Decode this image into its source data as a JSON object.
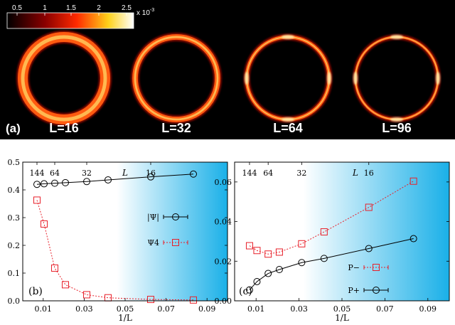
{
  "panel_a": {
    "label": "(a)",
    "colorbar": {
      "ticks": [
        "0.5",
        "1",
        "1.5",
        "2",
        "2.5"
      ],
      "scale": "x 10",
      "exponent": "-3"
    },
    "rings": [
      {
        "label": "L=16",
        "thickness": 1.0
      },
      {
        "label": "L=32",
        "thickness": 0.55
      },
      {
        "label": "L=64",
        "thickness": 0.35
      },
      {
        "label": "L=96",
        "thickness": 0.25
      }
    ]
  },
  "chart_data": [
    {
      "type": "line",
      "panel_label": "(b)",
      "xlabel": "1/L",
      "top_axis_label": "L",
      "top_ticks": [
        "144",
        "64",
        "32",
        "16"
      ],
      "top_tick_values": [
        0.006944,
        0.015625,
        0.03125,
        0.0625
      ],
      "xlim": [
        0,
        0.1
      ],
      "ylim": [
        0,
        0.5
      ],
      "xticks": [
        "0.01",
        "0.03",
        "0.05",
        "0.07",
        "0.09"
      ],
      "yticks": [
        "0.0",
        "0.1",
        "0.2",
        "0.3",
        "0.4",
        "0.5"
      ],
      "x": [
        0.006944,
        0.010417,
        0.015625,
        0.020833,
        0.03125,
        0.041667,
        0.0625,
        0.083333
      ],
      "series": [
        {
          "name": "|Ψ|",
          "marker": "circle",
          "color": "#000000",
          "values": [
            0.42,
            0.422,
            0.424,
            0.426,
            0.43,
            0.436,
            0.447,
            0.457
          ]
        },
        {
          "name": "Ψ4",
          "marker": "square",
          "color": "#e8202a",
          "values": [
            0.363,
            0.277,
            0.118,
            0.058,
            0.022,
            0.011,
            0.005,
            0.003
          ]
        }
      ],
      "legend": "right"
    },
    {
      "type": "line",
      "panel_label": "(c)",
      "xlabel": "1/L",
      "top_axis_label": "L",
      "top_ticks": [
        "144",
        "64",
        "32",
        "16"
      ],
      "top_tick_values": [
        0.006944,
        0.015625,
        0.03125,
        0.0625
      ],
      "xlim": [
        0,
        0.1
      ],
      "ylim": [
        0,
        0.07
      ],
      "xticks": [
        "0.01",
        "0.03",
        "0.05",
        "0.07",
        "0.09"
      ],
      "yticks": [
        "0.00",
        "0.02",
        "0.04",
        "0.06"
      ],
      "x": [
        0.006944,
        0.010417,
        0.015625,
        0.020833,
        0.03125,
        0.041667,
        0.0625,
        0.083333
      ],
      "series": [
        {
          "name": "P−",
          "marker": "square",
          "color": "#e8202a",
          "values": [
            0.0278,
            0.0254,
            0.0236,
            0.0246,
            0.0288,
            0.0348,
            0.0472,
            0.0604
          ]
        },
        {
          "name": "P+",
          "marker": "circle",
          "color": "#000000",
          "values": [
            0.0055,
            0.0097,
            0.0138,
            0.0158,
            0.0193,
            0.0214,
            0.0264,
            0.0314
          ]
        }
      ],
      "legend": "bottom-right"
    }
  ]
}
